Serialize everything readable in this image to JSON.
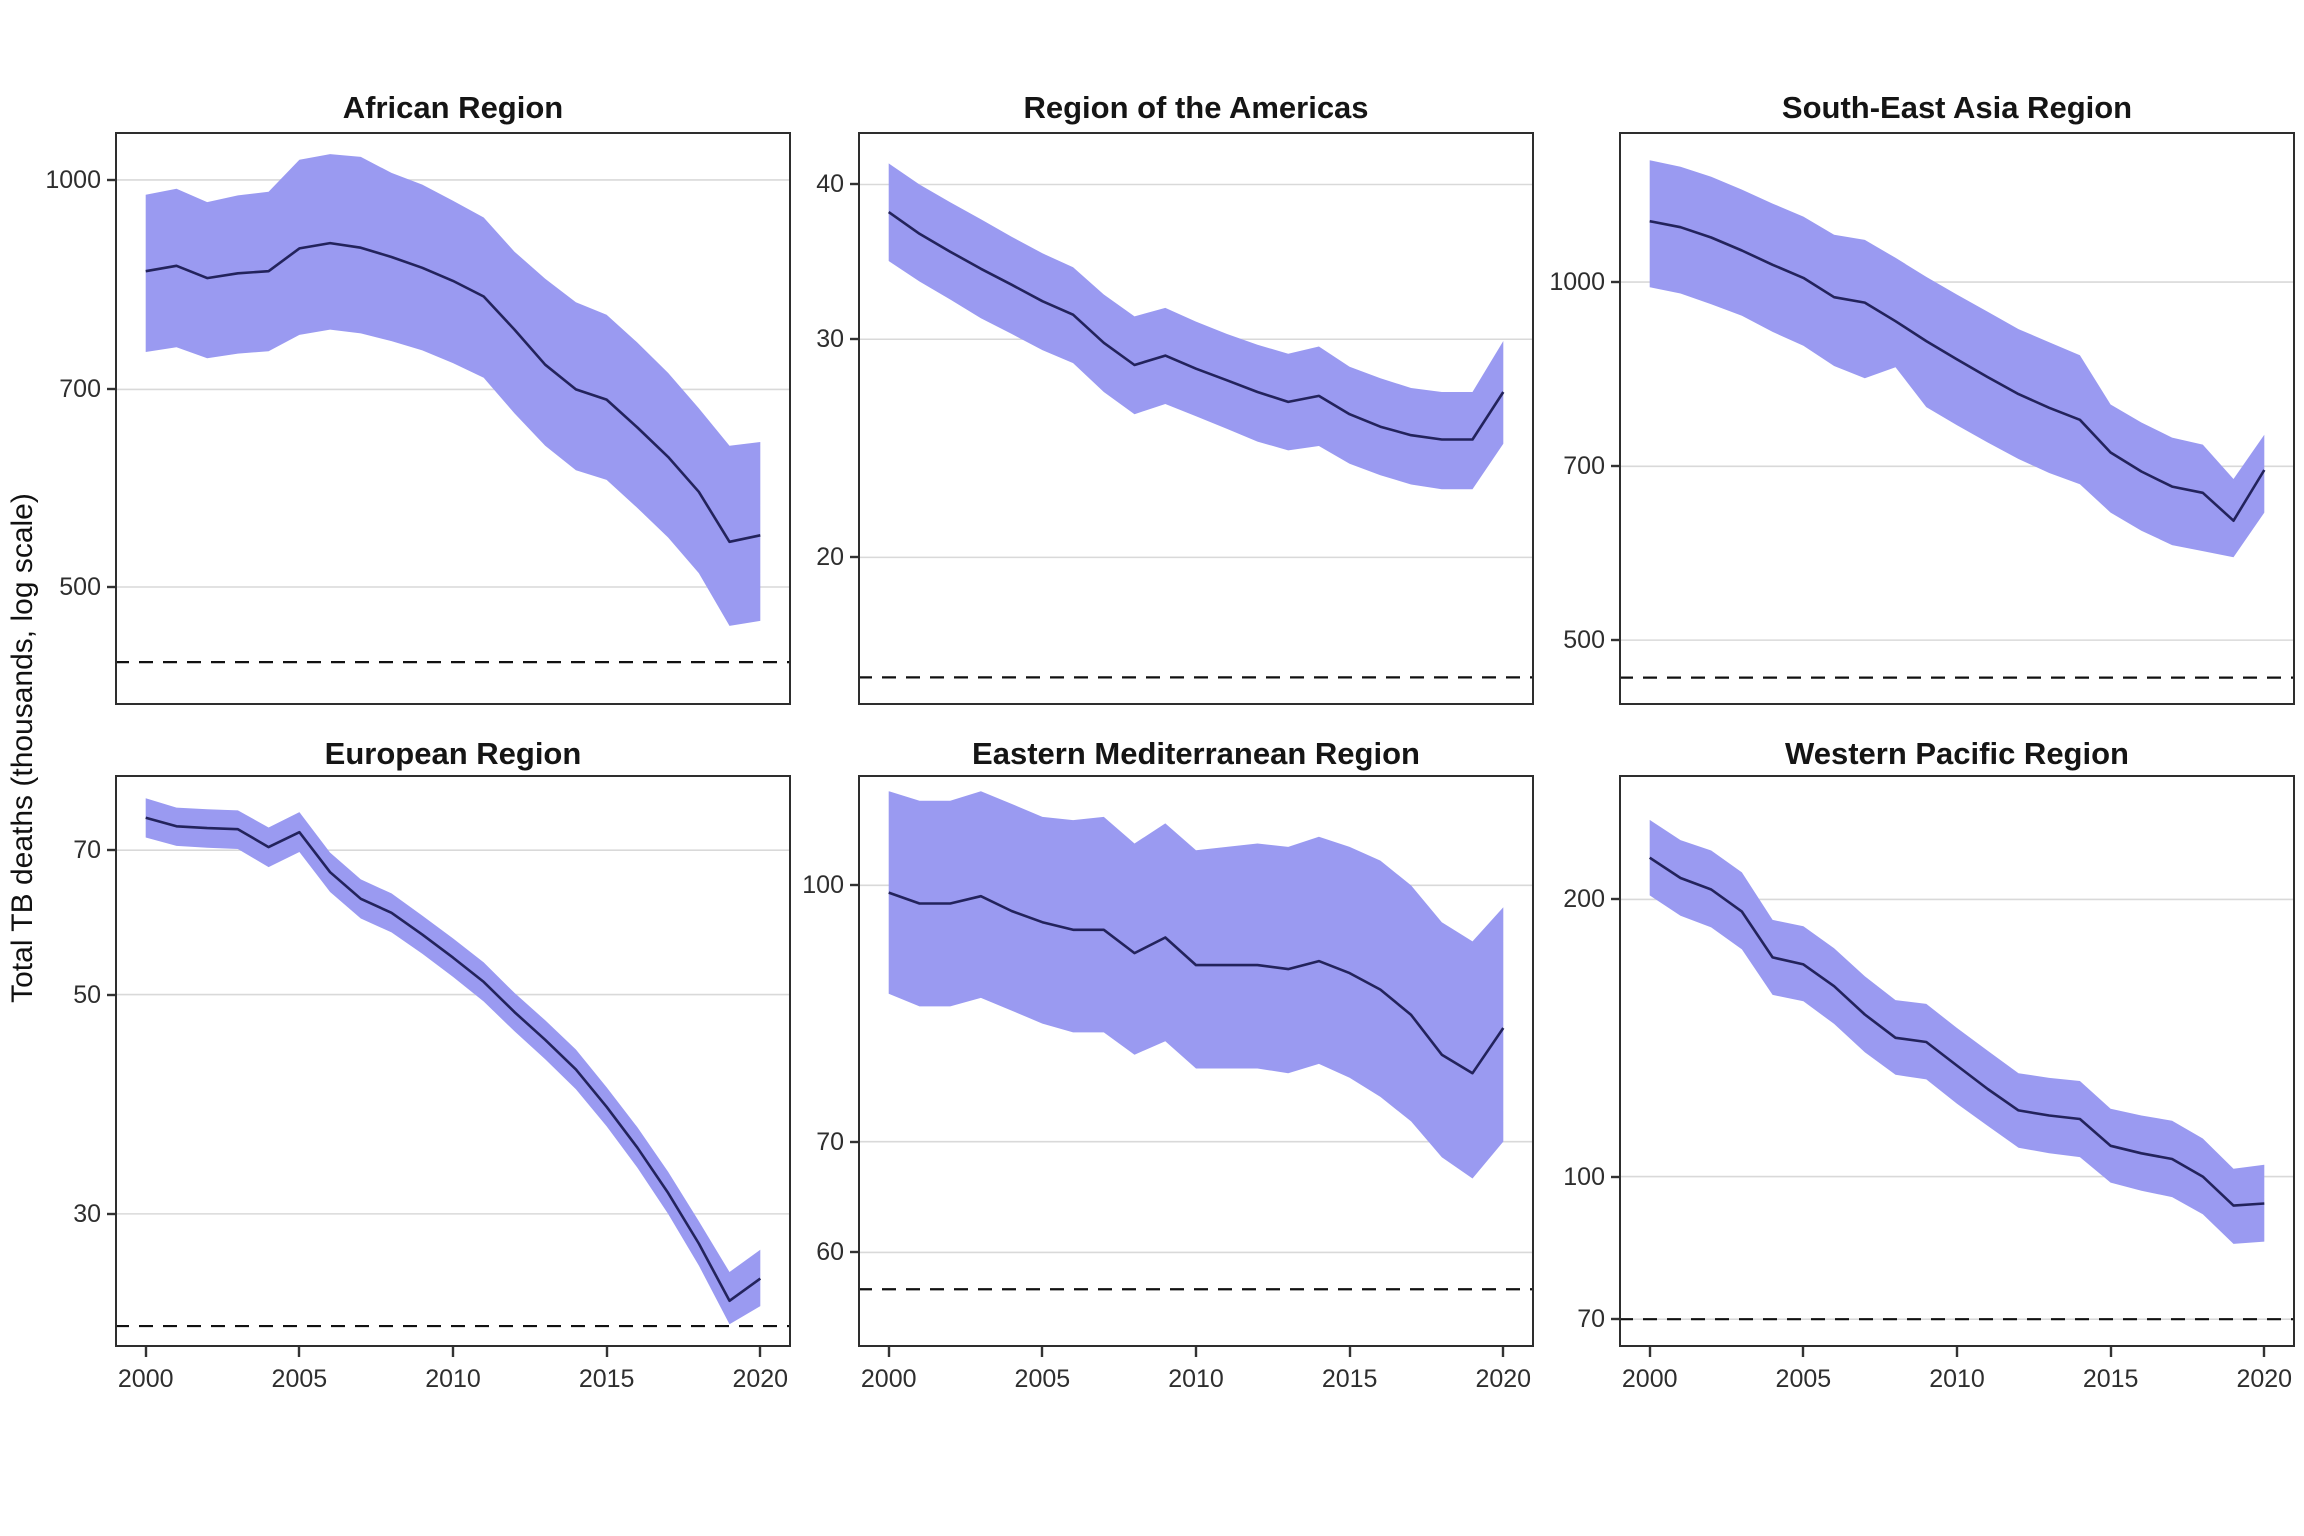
{
  "ylabel": "Total TB deaths (thousands, log scale)",
  "years": [
    2000,
    2001,
    2002,
    2003,
    2004,
    2005,
    2006,
    2007,
    2008,
    2009,
    2010,
    2011,
    2012,
    2013,
    2014,
    2015,
    2016,
    2017,
    2018,
    2019,
    2020
  ],
  "x_ticks": [
    2000,
    2005,
    2010,
    2015,
    2020
  ],
  "colors": {
    "band": "#9a9af1",
    "line": "#23235c",
    "grid": "#d9d9d9",
    "border": "#2e2e2e",
    "dashed": "#111111",
    "title_text": "#151515",
    "tick_text": "#2e2e2e"
  },
  "chart_data": [
    {
      "type": "line-with-band",
      "title": "African Region",
      "xlabel": "",
      "ylabel": "Total TB deaths (thousands, log scale)",
      "grid": "horizontal-major-only",
      "legend": "none",
      "yticks": [
        1000,
        700,
        500
      ],
      "ylim": [
        409,
        1085
      ],
      "dashed_target": 440,
      "line": [
        856,
        864,
        846,
        853,
        856,
        890,
        898,
        891,
        877,
        861,
        842,
        820,
        775,
        730,
        700,
        688,
        656,
        624,
        588,
        540,
        546
      ],
      "upper": [
        975,
        985,
        963,
        974,
        980,
        1035,
        1045,
        1040,
        1012,
        992,
        965,
        938,
        885,
        845,
        812,
        795,
        758,
        720,
        678,
        636,
        640
      ],
      "lower": [
        746,
        752,
        738,
        744,
        747,
        768,
        775,
        770,
        760,
        748,
        732,
        714,
        672,
        636,
        610,
        600,
        572,
        544,
        512,
        468,
        472
      ]
    },
    {
      "type": "line-with-band",
      "title": "Region of the Americas",
      "xlabel": "",
      "ylabel": "Total TB deaths (thousands, log scale)",
      "grid": "horizontal-major-only",
      "legend": "none",
      "yticks": [
        40,
        30,
        20
      ],
      "ylim": [
        15.2,
        44.1
      ],
      "dashed_target": 16,
      "line": [
        38,
        36.5,
        35.3,
        34.2,
        33.2,
        32.2,
        31.4,
        29.8,
        28.6,
        29.1,
        28.4,
        27.8,
        27.2,
        26.7,
        27.0,
        26.1,
        25.5,
        25.1,
        24.9,
        24.9,
        27.2
      ],
      "upper": [
        41.6,
        40.0,
        38.7,
        37.5,
        36.3,
        35.2,
        34.3,
        32.6,
        31.3,
        31.8,
        31.0,
        30.3,
        29.7,
        29.2,
        29.6,
        28.5,
        27.9,
        27.4,
        27.2,
        27.2,
        29.9
      ],
      "lower": [
        34.7,
        33.4,
        32.3,
        31.2,
        30.3,
        29.4,
        28.7,
        27.2,
        26.1,
        26.6,
        26.0,
        25.4,
        24.8,
        24.4,
        24.6,
        23.8,
        23.3,
        22.9,
        22.7,
        22.7,
        24.7
      ]
    },
    {
      "type": "line-with-band",
      "title": "South-East Asia Region",
      "xlabel": "",
      "ylabel": "Total TB deaths (thousands, log scale)",
      "grid": "horizontal-major-only",
      "legend": "none",
      "yticks": [
        1000,
        700,
        500
      ],
      "ylim": [
        441,
        1337
      ],
      "dashed_target": 465,
      "line": [
        1125,
        1112,
        1090,
        1063,
        1034,
        1008,
        971,
        961,
        927,
        892,
        861,
        832,
        805,
        784,
        766,
        719,
        693,
        673,
        665,
        630,
        695
      ],
      "upper": [
        1266,
        1250,
        1226,
        1196,
        1164,
        1135,
        1096,
        1085,
        1048,
        1010,
        976,
        944,
        913,
        890,
        868,
        789,
        762,
        740,
        730,
        683,
        744
      ],
      "lower": [
        990,
        978,
        958,
        937,
        908,
        884,
        850,
        830,
        848,
        785,
        758,
        733,
        710,
        691,
        676,
        640,
        618,
        601,
        594,
        587,
        640
      ]
    },
    {
      "type": "line-with-band",
      "title": "European Region",
      "xlabel": "",
      "ylabel": "Total TB deaths (thousands, log scale)",
      "grid": "horizontal-major-only",
      "legend": "none",
      "yticks": [
        70,
        50,
        30
      ],
      "ylim": [
        22.0,
        83.4
      ],
      "dashed_target": 23.1,
      "line": [
        75.5,
        74,
        73.7,
        73.5,
        70.5,
        73,
        66.5,
        62.5,
        60.5,
        57.5,
        54.5,
        51.5,
        48,
        45,
        42,
        38.5,
        35,
        31.5,
        28,
        24.5,
        25.8
      ],
      "upper": [
        79,
        77.3,
        77,
        76.8,
        73.8,
        76.5,
        69.6,
        65.4,
        63.3,
        60.1,
        57,
        53.9,
        50.2,
        47.1,
        44,
        40.3,
        36.7,
        33.1,
        29.5,
        26.2,
        27.6
      ],
      "lower": [
        72.1,
        70.7,
        70.4,
        70.2,
        67.3,
        69.7,
        63.5,
        59.7,
        57.8,
        55,
        52.1,
        49.2,
        45.9,
        43,
        40.1,
        36.8,
        33.4,
        30,
        26.6,
        23.2,
        24.2
      ]
    },
    {
      "type": "line-with-band",
      "title": "Eastern Mediterranean Region",
      "xlabel": "",
      "ylabel": "Total TB deaths (thousands, log scale)",
      "grid": "horizontal-major-only",
      "legend": "none",
      "yticks": [
        100,
        70,
        60
      ],
      "ylim": [
        52.6,
        116.6
      ],
      "dashed_target": 57,
      "line": [
        99,
        97.5,
        97.5,
        98.5,
        96.5,
        95,
        94,
        94,
        91,
        93,
        89.5,
        89.5,
        89.5,
        89,
        90,
        88.5,
        86.5,
        83.5,
        79,
        77,
        82
      ],
      "upper": [
        114,
        112.5,
        112.5,
        114,
        112,
        110,
        109.5,
        110,
        106,
        109,
        105,
        105.5,
        106,
        105.5,
        107,
        105.5,
        103.5,
        100,
        95,
        92.5,
        97
      ],
      "lower": [
        86,
        84.5,
        84.5,
        85.5,
        84,
        82.5,
        81.5,
        81.5,
        79,
        80.5,
        77.5,
        77.5,
        77.5,
        77,
        78,
        76.5,
        74.5,
        72,
        68.5,
        66.5,
        70
      ]
    },
    {
      "type": "line-with-band",
      "title": "Western Pacific Region",
      "xlabel": "",
      "ylabel": "Total TB deaths (thousands, log scale)",
      "grid": "horizontal-major-only",
      "legend": "none",
      "yticks": [
        200,
        100,
        70
      ],
      "ylim": [
        65.3,
        273
      ],
      "dashed_target": 70,
      "line": [
        222,
        211,
        205,
        194,
        173,
        170,
        161,
        150,
        141.5,
        140,
        132,
        124.5,
        118,
        116.5,
        115.5,
        108,
        106,
        104.5,
        100,
        93,
        93.5
      ],
      "upper": [
        244,
        232,
        226,
        214,
        190,
        187,
        177,
        165,
        155.5,
        154,
        145,
        137,
        129.5,
        128,
        127,
        118.5,
        116.5,
        115,
        110,
        102,
        103
      ],
      "lower": [
        202,
        192,
        186.5,
        176.5,
        157.5,
        155,
        146.5,
        136.5,
        129,
        127.5,
        120,
        113.5,
        107.5,
        106,
        105,
        98.5,
        96.5,
        95,
        91,
        84.5,
        85
      ]
    }
  ]
}
